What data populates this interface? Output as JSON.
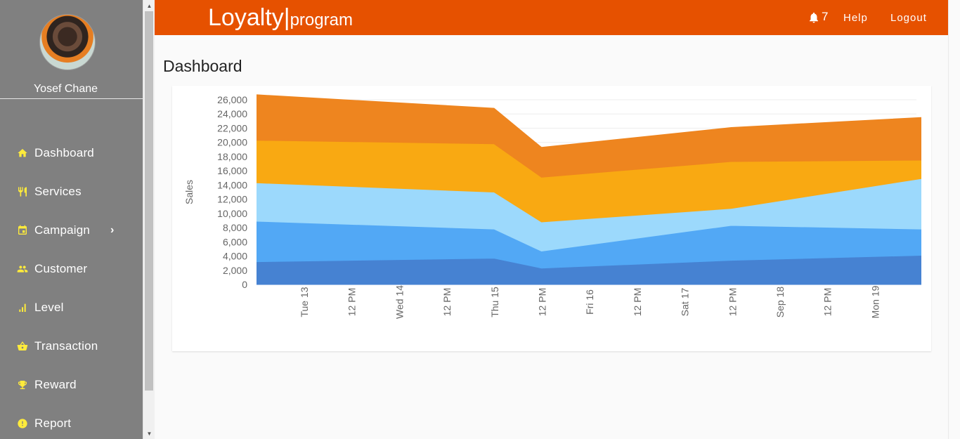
{
  "sidebar": {
    "user_name": "Yosef Chane",
    "items": [
      {
        "label": "Dashboard",
        "icon": "home-icon"
      },
      {
        "label": "Services",
        "icon": "restaurant-icon"
      },
      {
        "label": "Campaign",
        "icon": "calendar-icon",
        "has_submenu": true
      },
      {
        "label": "Customer",
        "icon": "people-icon"
      },
      {
        "label": "Level",
        "icon": "signal-bars-icon"
      },
      {
        "label": "Transaction",
        "icon": "basket-icon"
      },
      {
        "label": "Reward",
        "icon": "trophy-icon"
      },
      {
        "label": "Report",
        "icon": "alert-circle-icon"
      }
    ],
    "icon_color": "#ffeb3b",
    "background": "#808080"
  },
  "header": {
    "brand_main": "Loyalty",
    "brand_sep": "|",
    "brand_sub": "program",
    "notification_count": "7",
    "help_label": "Help",
    "logout_label": "Logout",
    "background": "#e65100"
  },
  "main": {
    "title": "Dashboard"
  },
  "chart_data": {
    "type": "area",
    "stacked": true,
    "title": "",
    "xlabel": "",
    "ylabel": "Sales",
    "ylim": [
      0,
      26000
    ],
    "yticks": [
      0,
      2000,
      4000,
      6000,
      8000,
      10000,
      12000,
      14000,
      16000,
      18000,
      20000,
      22000,
      24000,
      26000
    ],
    "ytick_labels": [
      "0",
      "2,000",
      "4,000",
      "6,000",
      "8,000",
      "10,000",
      "12,000",
      "14,000",
      "16,000",
      "18,000",
      "20,000",
      "22,000",
      "24,000",
      "26,000"
    ],
    "x_tick_labels": [
      "Tue 13",
      "12 PM",
      "Wed 14",
      "12 PM",
      "Thu 15",
      "12 PM",
      "Fri 16",
      "12 PM",
      "Sat 17",
      "12 PM",
      "Sep 18",
      "12 PM",
      "Mon 19"
    ],
    "x": [
      "2023-09-12T12:00",
      "2023-09-15T00:00",
      "2023-09-15T12:00",
      "2023-09-17T12:00",
      "2023-09-19T12:00"
    ],
    "series": [
      {
        "values": [
          3200,
          3700,
          2300,
          3400,
          4100
        ],
        "color": "#4682d2"
      },
      {
        "values": [
          5700,
          4100,
          2400,
          4900,
          3700
        ],
        "color": "#52a8f5"
      },
      {
        "values": [
          5400,
          5200,
          4100,
          2400,
          7100
        ],
        "color": "#9cd9fc"
      },
      {
        "values": [
          6000,
          6800,
          6300,
          6600,
          2600
        ],
        "color": "#f9a912"
      },
      {
        "values": [
          6400,
          5000,
          4200,
          4800,
          6000
        ],
        "color": "#ee851f"
      }
    ],
    "grid": true,
    "legend": "none"
  }
}
